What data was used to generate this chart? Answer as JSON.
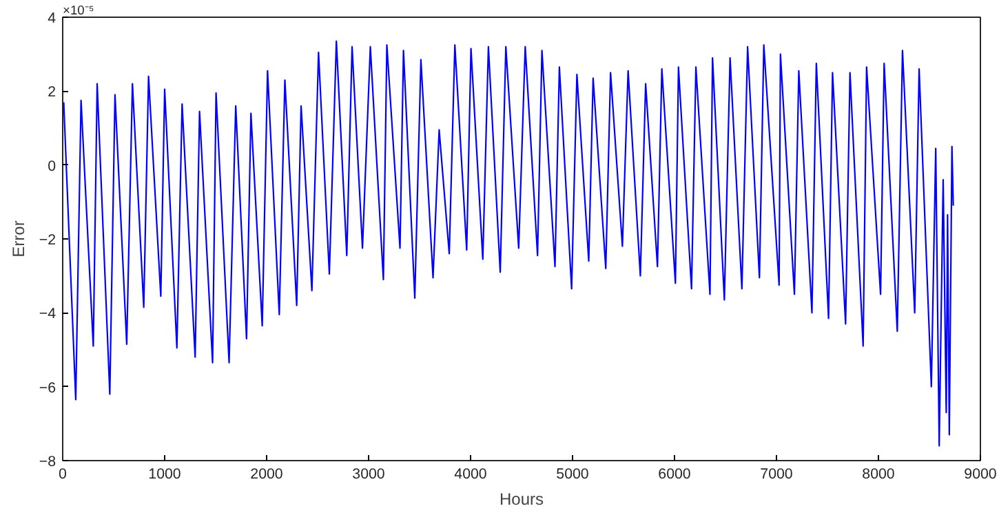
{
  "chart_data": {
    "type": "line",
    "xlabel": "Hours",
    "ylabel": "Error",
    "annotations": [
      "×10⁻⁵"
    ],
    "xlim": [
      0,
      9000
    ],
    "xticks": [
      0,
      1000,
      2000,
      3000,
      4000,
      5000,
      6000,
      7000,
      8000,
      9000
    ],
    "ylim": [
      -8,
      4
    ],
    "yticks": [
      -8,
      -6,
      -4,
      -2,
      0,
      2,
      4
    ],
    "grid": false,
    "line_style": "solid",
    "series": [
      {
        "color": "#0000ff",
        "x": [
          10,
          128,
          180,
          300,
          338,
          462,
          513,
          628,
          684,
          795,
          842,
          962,
          1000,
          1120,
          1171,
          1299,
          1342,
          1470,
          1504,
          1632,
          1697,
          1803,
          1846,
          1957,
          2009,
          2124,
          2179,
          2295,
          2338,
          2444,
          2509,
          2615,
          2684,
          2786,
          2838,
          2940,
          3017,
          3145,
          3179,
          3308,
          3342,
          3453,
          3513,
          3632,
          3692,
          3791,
          3846,
          3962,
          4004,
          4120,
          4175,
          4291,
          4346,
          4472,
          4536,
          4657,
          4700,
          4828,
          4871,
          4991,
          5043,
          5159,
          5202,
          5326,
          5373,
          5489,
          5545,
          5665,
          5717,
          5833,
          5876,
          6009,
          6039,
          6167,
          6210,
          6348,
          6373,
          6489,
          6545,
          6661,
          6717,
          6833,
          6876,
          7026,
          7039,
          7176,
          7219,
          7348,
          7391,
          7511,
          7550,
          7678,
          7721,
          7850,
          7884,
          8021,
          8056,
          8185,
          8236,
          8356,
          8399,
          8519,
          8562,
          8596,
          8635,
          8665,
          8678,
          8695,
          8721,
          8734
        ],
        "values": [
          1.7,
          -6.35,
          1.75,
          -4.9,
          2.2,
          -6.2,
          1.9,
          -4.85,
          2.2,
          -3.85,
          2.4,
          -3.55,
          2.05,
          -4.95,
          1.65,
          -5.2,
          1.45,
          -5.35,
          1.95,
          -5.35,
          1.6,
          -4.7,
          1.4,
          -4.35,
          2.55,
          -4.05,
          2.3,
          -3.8,
          1.6,
          -3.4,
          3.05,
          -2.95,
          3.35,
          -2.45,
          3.2,
          -2.25,
          3.2,
          -3.1,
          3.25,
          -2.25,
          3.1,
          -3.6,
          2.85,
          -3.05,
          0.95,
          -2.4,
          3.25,
          -2.3,
          3.15,
          -2.55,
          3.2,
          -2.9,
          3.2,
          -2.25,
          3.2,
          -2.45,
          3.1,
          -2.75,
          2.65,
          -3.35,
          2.45,
          -2.6,
          2.35,
          -2.8,
          2.5,
          -2.2,
          2.55,
          -3.0,
          2.2,
          -2.75,
          2.6,
          -3.2,
          2.65,
          -3.35,
          2.65,
          -3.5,
          2.9,
          -3.65,
          2.9,
          -3.35,
          3.2,
          -3.05,
          3.25,
          -3.25,
          3.0,
          -3.5,
          2.55,
          -4.0,
          2.75,
          -4.15,
          2.5,
          -4.3,
          2.5,
          -4.9,
          2.65,
          -3.5,
          2.75,
          -4.5,
          3.1,
          -4.0,
          2.6,
          -6.0,
          0.45,
          -7.6,
          -0.4,
          -6.7,
          -1.35,
          -7.3,
          0.5,
          -1.1
        ]
      }
    ]
  }
}
